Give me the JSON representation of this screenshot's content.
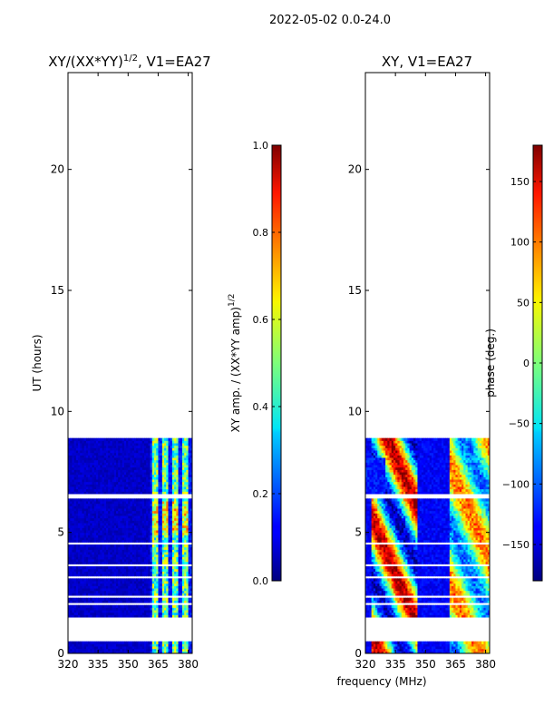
{
  "suptitle": "2022-05-02 0.0-24.0",
  "xlabel": "frequency (MHz)",
  "chart_data": [
    {
      "type": "heatmap",
      "title_main": "XY/(XX*YY)",
      "title_sup": "1/2",
      "title_tail": ", V1=EA27",
      "ylabel": "UT (hours)",
      "xlim": [
        320,
        382
      ],
      "ylim": [
        0,
        24
      ],
      "xticks": [
        "320",
        "335",
        "350",
        "365",
        "380"
      ],
      "yticks": [
        "0",
        "5",
        "10",
        "15",
        "20"
      ],
      "data_rows_hours": [
        0.4,
        8.8
      ],
      "gap_bands_hours": [
        [
          1.3,
          1.5
        ],
        [
          6.3,
          6.5
        ],
        [
          4.5,
          4.6
        ]
      ],
      "bright_channels_mhz": [
        363,
        368,
        373,
        378
      ],
      "colorbar": {
        "label_main": "XY amp. / (XX*YY amp)",
        "label_sup": "1/2",
        "range": [
          0.0,
          1.0
        ],
        "ticks": [
          "0.0",
          "0.2",
          "0.4",
          "0.6",
          "0.8",
          "1.0"
        ]
      }
    },
    {
      "type": "heatmap",
      "title": "XY, V1=EA27",
      "xlim": [
        320,
        382
      ],
      "ylim": [
        0,
        24
      ],
      "xticks": [
        "320",
        "335",
        "350",
        "365",
        "380"
      ],
      "yticks": [
        "0",
        "5",
        "10",
        "15",
        "20"
      ],
      "colorbar": {
        "label": "phase (deg.)",
        "range": [
          -180,
          180
        ],
        "ticks": [
          "−150",
          "−100",
          "−50",
          "0",
          "50",
          "100",
          "150"
        ]
      }
    }
  ]
}
